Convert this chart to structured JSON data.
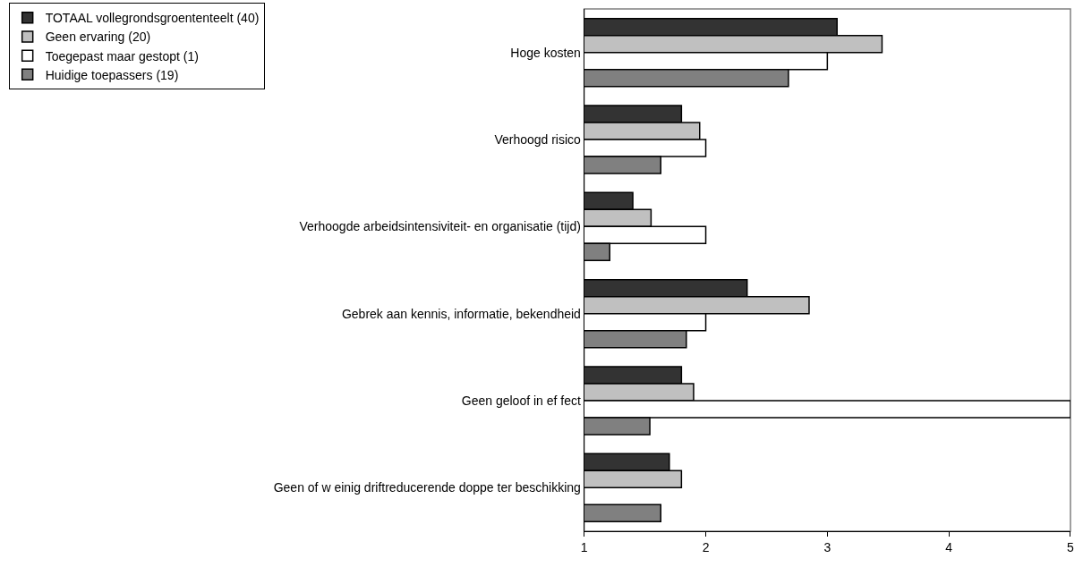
{
  "chart_data": {
    "type": "bar",
    "orientation": "horizontal",
    "categories": [
      "Hoge kosten",
      "Verhoogd risico",
      "Verhoogde arbeidsintensiviteit- en organisatie (tijd)",
      "Gebrek aan kennis, informatie, bekendheid",
      "Geen geloof in ef fect",
      "Geen of w einig driftreducerende doppe ter beschikking"
    ],
    "series": [
      {
        "name": "TOTAAL vollegrondsgroententeelt (40)",
        "color": "#333333",
        "values": [
          3.08,
          1.8,
          1.4,
          2.34,
          1.8,
          1.7
        ]
      },
      {
        "name": "Geen ervaring (20)",
        "color": "#c0c0c0",
        "values": [
          3.45,
          1.95,
          1.55,
          2.85,
          1.9,
          1.8
        ]
      },
      {
        "name": "Toegepast maar gestopt (1)",
        "color": "#ffffff",
        "values": [
          3.0,
          2.0,
          2.0,
          2.0,
          5.0,
          null
        ]
      },
      {
        "name": "Huidige toepassers (19)",
        "color": "#808080",
        "values": [
          2.68,
          1.63,
          1.21,
          1.84,
          1.54,
          1.63
        ]
      }
    ],
    "xlim": [
      1,
      5
    ],
    "xticks": [
      1,
      2,
      3,
      4,
      5
    ],
    "grid": false,
    "legend": "top left"
  }
}
